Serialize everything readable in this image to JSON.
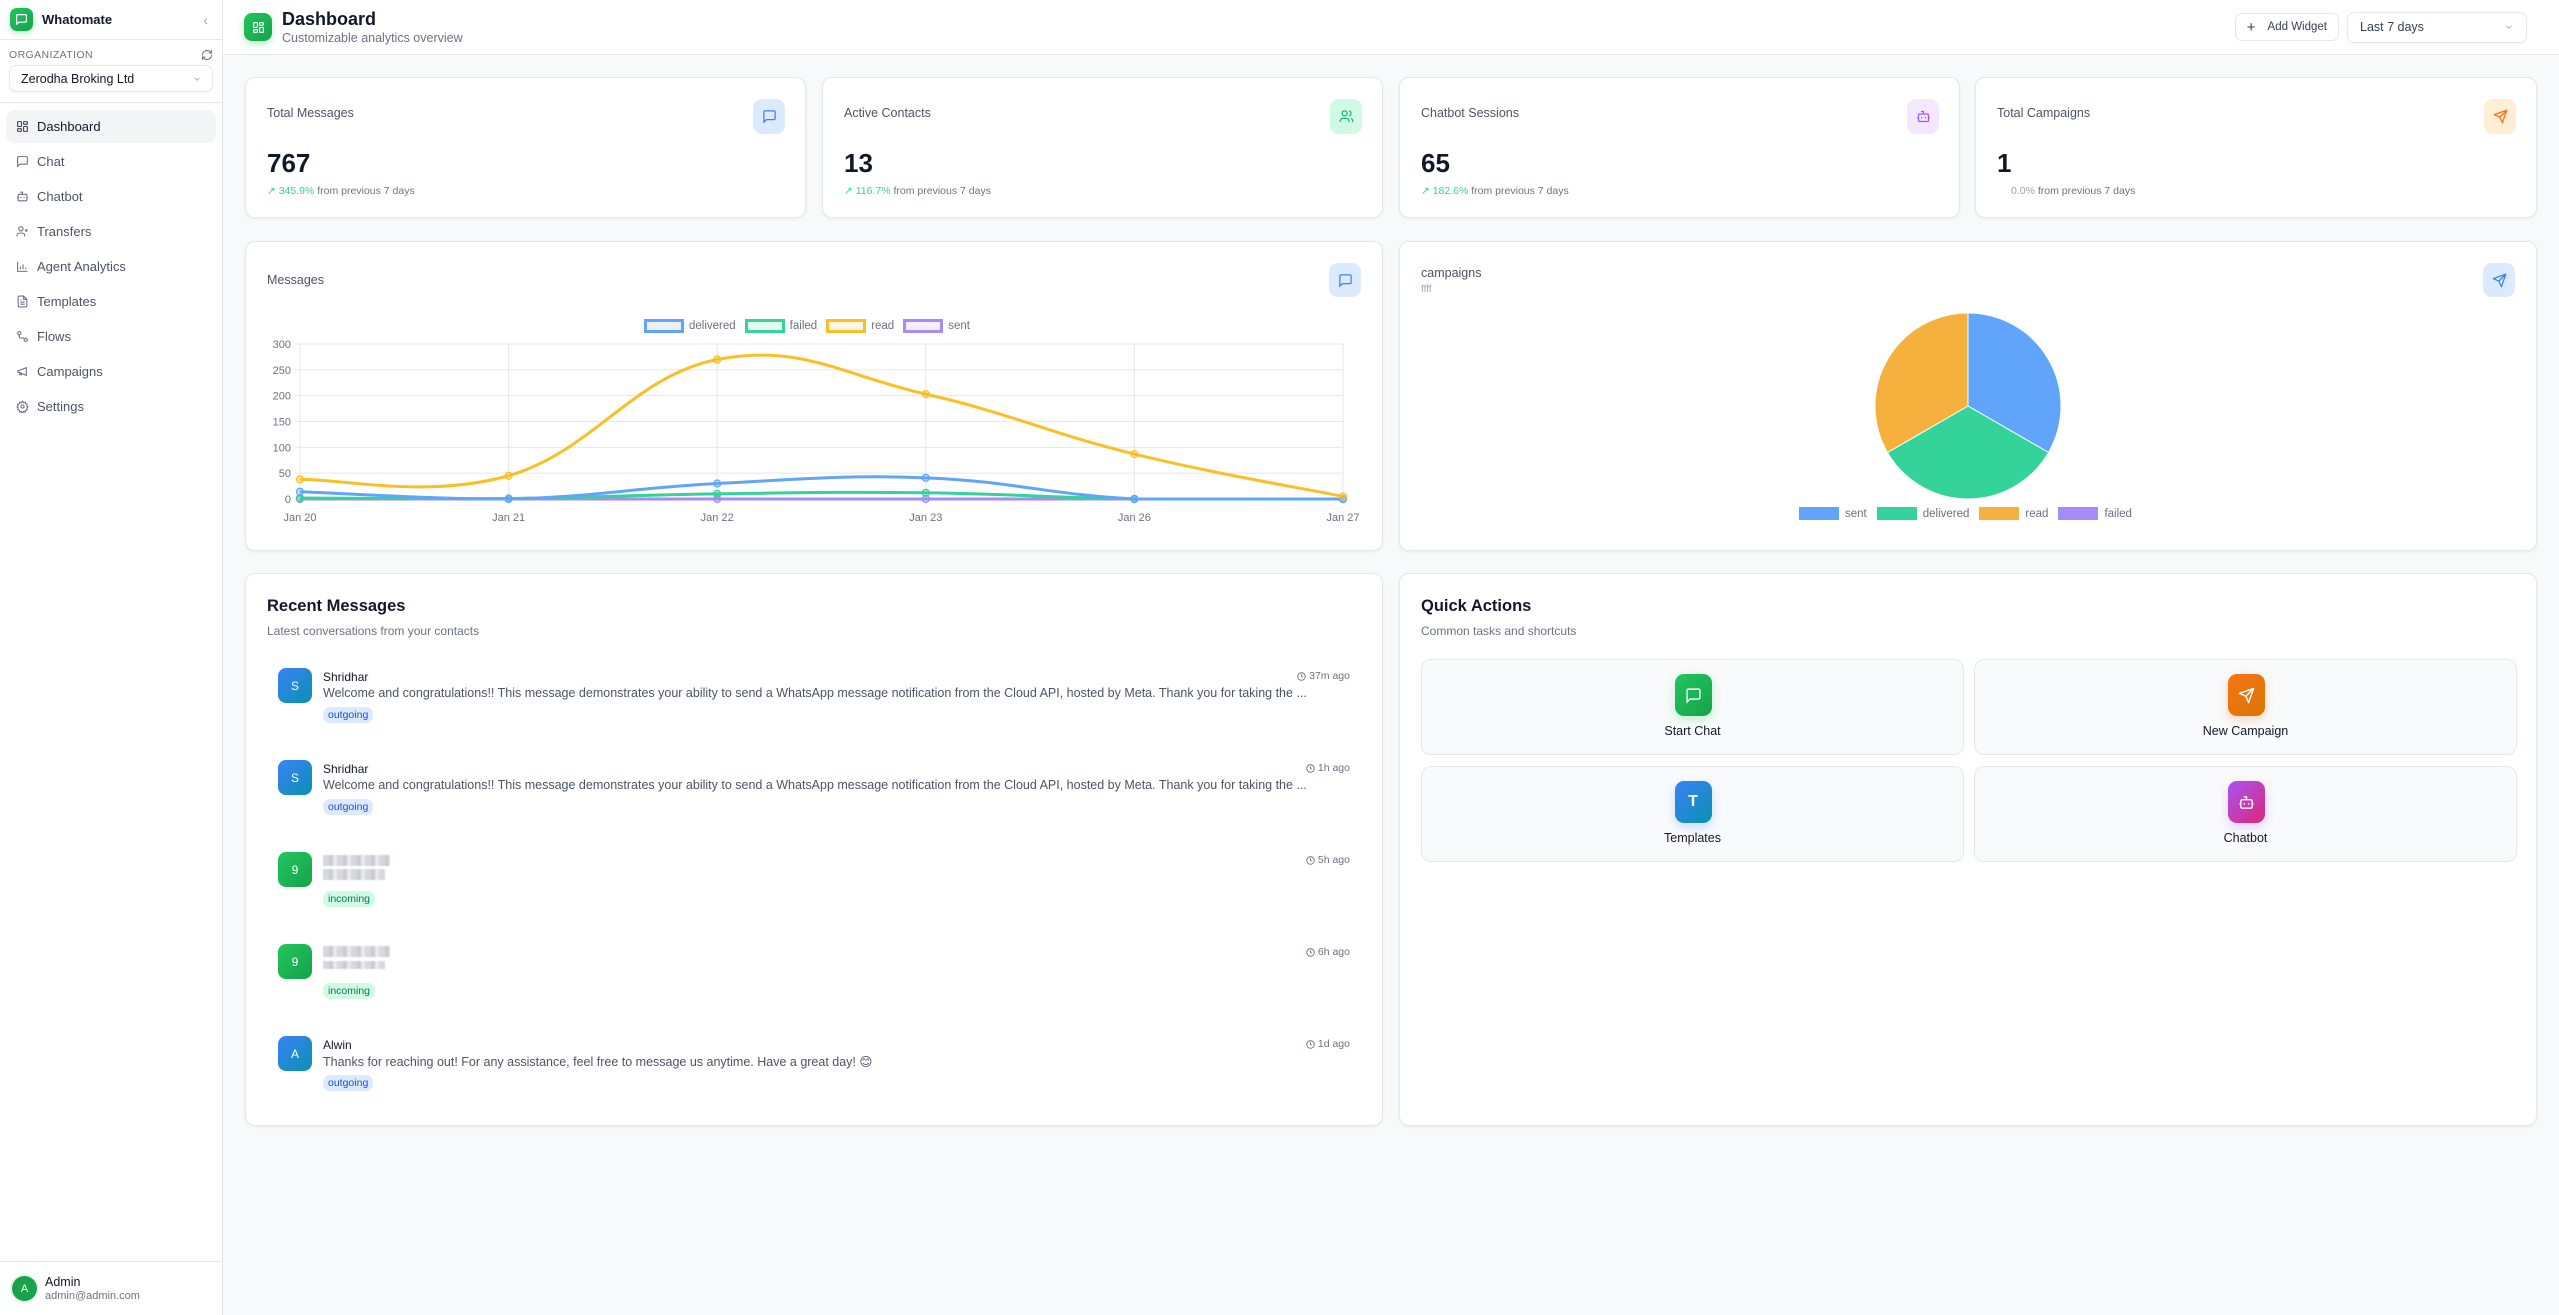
{
  "app": {
    "name": "Whatomate"
  },
  "sidebar": {
    "org_label": "ORGANIZATION",
    "org_selected": "Zerodha Broking Ltd",
    "items": [
      {
        "label": "Dashboard",
        "icon": "dashboard-icon",
        "active": true
      },
      {
        "label": "Chat",
        "icon": "chat-icon"
      },
      {
        "label": "Chatbot",
        "icon": "bot-icon"
      },
      {
        "label": "Transfers",
        "icon": "user-x-icon"
      },
      {
        "label": "Agent Analytics",
        "icon": "bar-chart-icon"
      },
      {
        "label": "Templates",
        "icon": "file-text-icon"
      },
      {
        "label": "Flows",
        "icon": "workflow-icon"
      },
      {
        "label": "Campaigns",
        "icon": "megaphone-icon"
      },
      {
        "label": "Settings",
        "icon": "gear-icon"
      }
    ],
    "user": {
      "initial": "A",
      "name": "Admin",
      "email": "admin@admin.com"
    }
  },
  "header": {
    "title": "Dashboard",
    "subtitle": "Customizable analytics overview",
    "add_widget": "Add Widget",
    "range": "Last 7 days"
  },
  "stats": [
    {
      "label": "Total Messages",
      "value": "767",
      "change": "345.9%",
      "suffix": "from previous 7 days",
      "trend": "up",
      "icon": "message-icon",
      "bg": "#dbeafe",
      "fg": "#3b82f6"
    },
    {
      "label": "Active Contacts",
      "value": "13",
      "change": "116.7%",
      "suffix": "from previous 7 days",
      "trend": "up",
      "icon": "users-icon",
      "bg": "#d1fae5",
      "fg": "#10b981"
    },
    {
      "label": "Chatbot Sessions",
      "value": "65",
      "change": "182.6%",
      "suffix": "from previous 7 days",
      "trend": "up",
      "icon": "bot-icon",
      "bg": "#f3e8ff",
      "fg": "#a855f7"
    },
    {
      "label": "Total Campaigns",
      "value": "1",
      "change": "0.0%",
      "suffix": "from previous 7 days",
      "trend": "flat",
      "icon": "send-icon",
      "bg": "#ffedd5",
      "fg": "#f97316"
    }
  ],
  "messages_widget": {
    "title": "Messages"
  },
  "campaigns_widget": {
    "title": "campaigns",
    "subtitle": "ffff"
  },
  "chart_data": [
    {
      "type": "line",
      "title": "Messages",
      "categories": [
        "Jan 20",
        "Jan 21",
        "Jan 22",
        "Jan 23",
        "Jan 26",
        "Jan 27"
      ],
      "series": [
        {
          "name": "delivered",
          "color": "#60a5fa",
          "values": [
            14,
            0,
            30,
            41,
            0,
            0
          ]
        },
        {
          "name": "failed",
          "color": "#34d399",
          "values": [
            2,
            1,
            10,
            12,
            0,
            0
          ]
        },
        {
          "name": "read",
          "color": "#fbbf24",
          "values": [
            38,
            45,
            270,
            203,
            87,
            5
          ]
        },
        {
          "name": "sent",
          "color": "#a78bfa",
          "values": [
            0,
            0,
            0,
            0,
            0,
            0
          ]
        }
      ],
      "yticks": [
        0,
        50,
        100,
        150,
        200,
        250,
        300
      ],
      "ylim": [
        0,
        300
      ],
      "grid": true,
      "legend_position": "top"
    },
    {
      "type": "pie",
      "title": "campaigns",
      "subtitle": "ffff",
      "categories": [
        "sent",
        "delivered",
        "read",
        "failed"
      ],
      "values": [
        1,
        1,
        1,
        0
      ],
      "colors": [
        "#60a5fa",
        "#34d399",
        "#f6b03e",
        "#a78bfa"
      ],
      "legend_position": "bottom"
    }
  ],
  "recent": {
    "title": "Recent Messages",
    "subtitle": "Latest conversations from your contacts",
    "items": [
      {
        "initial": "S",
        "name": "Shridhar",
        "text": "Welcome and congratulations!! This message demonstrates your ability to send a WhatsApp message notification from the Cloud API, hosted by Meta. Thank you for taking the ...",
        "time": "37m ago",
        "direction": "outgoing"
      },
      {
        "initial": "S",
        "name": "Shridhar",
        "text": "Welcome and congratulations!! This message demonstrates your ability to send a WhatsApp message notification from the Cloud API, hosted by Meta. Thank you for taking the ...",
        "time": "1h ago",
        "direction": "outgoing"
      },
      {
        "initial": "9",
        "name": "",
        "text": "",
        "time": "5h ago",
        "direction": "incoming"
      },
      {
        "initial": "9",
        "name": "",
        "text": "",
        "time": "6h ago",
        "direction": "incoming"
      },
      {
        "initial": "A",
        "name": "Alwin",
        "text": "Thanks for reaching out! For any assistance, feel free to message us anytime. Have a great day! 😊",
        "time": "1d ago",
        "direction": "outgoing"
      }
    ]
  },
  "quick": {
    "title": "Quick Actions",
    "subtitle": "Common tasks and shortcuts",
    "items": [
      {
        "label": "Start Chat",
        "icon": "chat-icon"
      },
      {
        "label": "New Campaign",
        "icon": "send-icon"
      },
      {
        "label": "Templates",
        "icon": "letter-t-icon",
        "glyph": "T"
      },
      {
        "label": "Chatbot",
        "icon": "bot-icon"
      }
    ]
  }
}
